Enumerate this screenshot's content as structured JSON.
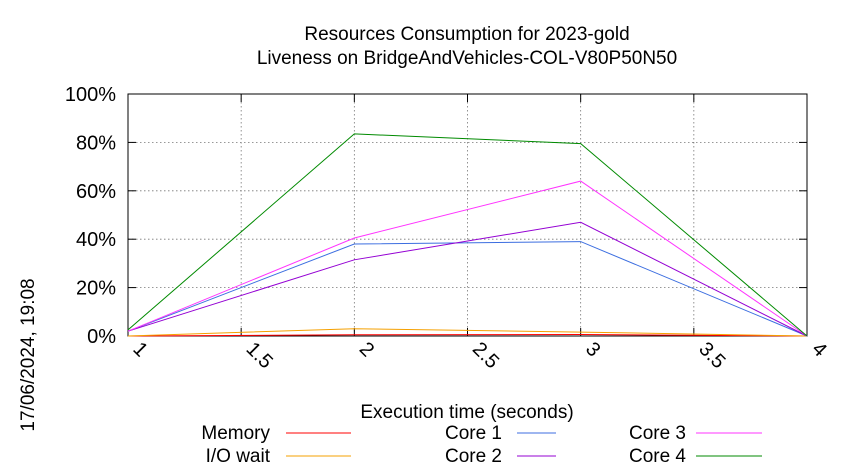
{
  "chart_data": {
    "type": "line",
    "title": "Resources Consumption for 2023-gold",
    "subtitle": "Liveness on BridgeAndVehicles-COL-V80P50N50",
    "xlabel": "Execution time (seconds)",
    "ylabel": "",
    "side_note": "17/06/2024, 19:08",
    "xlim": [
      1,
      4
    ],
    "ylim": [
      0,
      100
    ],
    "xticks": [
      1,
      1.5,
      2,
      2.5,
      3,
      3.5,
      4
    ],
    "xtick_labels": [
      "1",
      "1.5",
      "2",
      "2.5",
      "3",
      "3.5",
      "4"
    ],
    "yticks": [
      0,
      20,
      40,
      60,
      80,
      100
    ],
    "ytick_labels": [
      "0%",
      "20%",
      "40%",
      "60%",
      "80%",
      "100%"
    ],
    "grid": true,
    "legend_position": "bottom",
    "x": [
      1,
      2,
      3,
      4
    ],
    "series": [
      {
        "name": "Memory",
        "color": "#ff0000",
        "values": [
          0,
          0.5,
          0.6,
          0
        ]
      },
      {
        "name": "I/O wait",
        "color": "#f5a000",
        "values": [
          0,
          3,
          1.6,
          0
        ]
      },
      {
        "name": "Core 1",
        "color": "#3c6ee0",
        "values": [
          2,
          38,
          39,
          0
        ]
      },
      {
        "name": "Core 2",
        "color": "#9400d3",
        "values": [
          2,
          31.5,
          47,
          0
        ]
      },
      {
        "name": "Core 3",
        "color": "#ff33ff",
        "values": [
          2,
          40.5,
          64,
          0
        ]
      },
      {
        "name": "Core 4",
        "color": "#008a00",
        "values": [
          2.5,
          83.5,
          79.5,
          0
        ]
      }
    ]
  }
}
